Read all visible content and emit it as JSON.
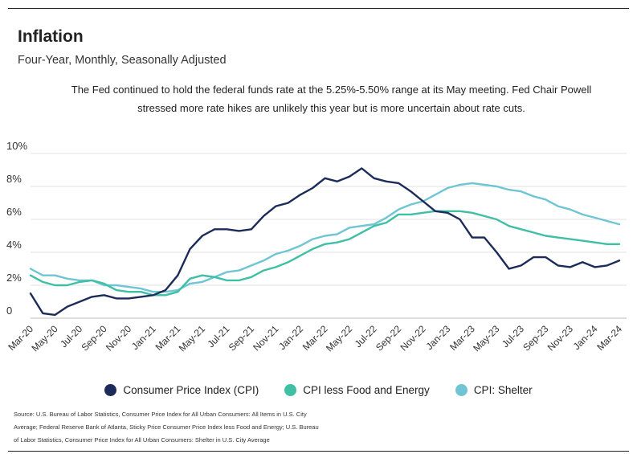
{
  "header": {
    "title": "Inflation",
    "subtitle": "Four-Year, Monthly, Seasonally Adjusted",
    "annotation": "The Fed continued to hold the federal funds rate at the 5.25%-5.50% range at its May meeting. Fed Chair Powell stressed more rate hikes are unlikely this year but is more uncertain about rate cuts."
  },
  "source": {
    "text": "Source:  U.S. Bureau of Labor Statistics, Consumer Price Index for All Urban Consumers: All Items in U.S. City Average; Federal Reserve Bank of Atlanta, Sticky Price Consumer Price Index less Food and Energy; U.S. Bureau of Labor Statistics, Consumer Price Index for All Urban Consumers: Shelter in U.S. City Average"
  },
  "chart_data": {
    "type": "line",
    "title": "Inflation",
    "xlabel": "",
    "ylabel": "",
    "ylim": [
      0,
      10
    ],
    "grid": true,
    "legend_position": "bottom",
    "y_ticks": [
      {
        "value": 0,
        "label": "0"
      },
      {
        "value": 2,
        "label": "2%"
      },
      {
        "value": 4,
        "label": "4%"
      },
      {
        "value": 6,
        "label": "6%"
      },
      {
        "value": 8,
        "label": "8%"
      },
      {
        "value": 10,
        "label": "10%"
      }
    ],
    "x_start": "Mar-20",
    "x_tick_step": 2,
    "x_labels": [
      "Mar-20",
      "May-20",
      "Jul-20",
      "Sep-20",
      "Nov-20",
      "Jan-21",
      "Mar-21",
      "May-21",
      "Jul-21",
      "Sep-21",
      "Nov-21",
      "Jan-22",
      "Mar-22",
      "May-22",
      "Jul-22",
      "Sep-22",
      "Nov-22",
      "Jan-23",
      "Mar-23",
      "May-23",
      "Jul-23",
      "Sep-23",
      "Nov-23",
      "Jan-24",
      "Mar-24"
    ],
    "series": [
      {
        "name": "Consumer Price Index (CPI)",
        "color": "#1c2b5a",
        "values": [
          1.5,
          0.3,
          0.2,
          0.7,
          1.0,
          1.3,
          1.4,
          1.2,
          1.2,
          1.3,
          1.4,
          1.7,
          2.6,
          4.2,
          5.0,
          5.4,
          5.4,
          5.3,
          5.4,
          6.2,
          6.8,
          7.0,
          7.5,
          7.9,
          8.5,
          8.3,
          8.6,
          9.1,
          8.5,
          8.3,
          8.2,
          7.7,
          7.1,
          6.5,
          6.4,
          6.0,
          4.9,
          4.9,
          4.0,
          3.0,
          3.2,
          3.7,
          3.7,
          3.2,
          3.1,
          3.4,
          3.1,
          3.2,
          3.5
        ]
      },
      {
        "name": "CPI less Food and Energy",
        "color": "#3fbfa4",
        "values": [
          2.6,
          2.2,
          2.0,
          2.0,
          2.2,
          2.3,
          2.1,
          1.7,
          1.6,
          1.6,
          1.4,
          1.4,
          1.6,
          2.4,
          2.6,
          2.5,
          2.3,
          2.3,
          2.5,
          2.9,
          3.1,
          3.4,
          3.8,
          4.2,
          4.5,
          4.6,
          4.8,
          5.2,
          5.6,
          5.8,
          6.3,
          6.3,
          6.4,
          6.5,
          6.5,
          6.5,
          6.4,
          6.2,
          6.0,
          5.6,
          5.4,
          5.2,
          5.0,
          4.9,
          4.8,
          4.7,
          4.6,
          4.5,
          4.5
        ]
      },
      {
        "name": "CPI: Shelter",
        "color": "#6fc5d4",
        "values": [
          3.0,
          2.6,
          2.6,
          2.4,
          2.3,
          2.3,
          2.0,
          2.0,
          1.9,
          1.8,
          1.6,
          1.6,
          1.7,
          2.1,
          2.2,
          2.5,
          2.8,
          2.9,
          3.2,
          3.5,
          3.9,
          4.1,
          4.4,
          4.8,
          5.0,
          5.1,
          5.5,
          5.6,
          5.7,
          6.1,
          6.6,
          6.9,
          7.1,
          7.5,
          7.9,
          8.1,
          8.2,
          8.1,
          8.0,
          7.8,
          7.7,
          7.4,
          7.2,
          6.8,
          6.6,
          6.3,
          6.1,
          5.9,
          5.7
        ]
      }
    ]
  }
}
